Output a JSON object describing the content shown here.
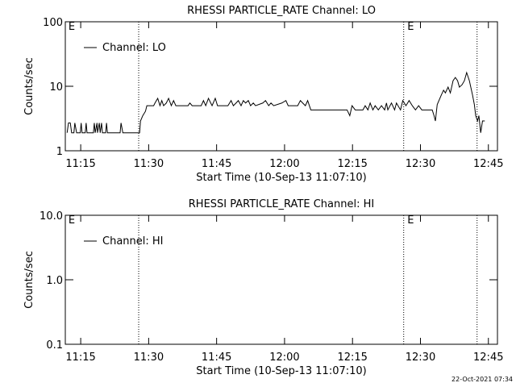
{
  "chart_data": [
    {
      "type": "line",
      "title": "RHESSI PARTICLE_RATE Channel: LO",
      "xlabel": "Start Time (10-Sep-13 11:07:10)",
      "ylabel": "Counts/sec",
      "yscale": "log",
      "xlim": [
        671.6,
        767
      ],
      "ylim": [
        1,
        100
      ],
      "xticks": [
        {
          "value": 675,
          "label": "11:15"
        },
        {
          "value": 690,
          "label": "11:30"
        },
        {
          "value": 705,
          "label": "11:45"
        },
        {
          "value": 720,
          "label": "12:00"
        },
        {
          "value": 735,
          "label": "12:15"
        },
        {
          "value": 750,
          "label": "12:30"
        },
        {
          "value": 765,
          "label": "12:45"
        }
      ],
      "yticks": [
        1,
        10,
        100
      ],
      "markers": [
        687.8,
        746.3,
        762.5
      ],
      "annotations": [
        {
          "text": "E",
          "x": 672.3
        },
        {
          "text": "E",
          "x": 747.1
        }
      ],
      "x": [
        672.0,
        672.3,
        672.7,
        673.0,
        673.5,
        673.7,
        674.1,
        674.9,
        675.1,
        675.3,
        676.0,
        676.2,
        676.4,
        677.8,
        678.0,
        678.2,
        678.6,
        678.7,
        679.1,
        679.3,
        679.6,
        679.8,
        680.5,
        680.7,
        680.9,
        683.7,
        683.9,
        684.3,
        688.0,
        688.2,
        688.7,
        689.3,
        689.6,
        691.1,
        691.4,
        692.0,
        692.5,
        692.9,
        693.3,
        693.9,
        694.4,
        695.0,
        695.5,
        696.0,
        698.7,
        699.1,
        699.6,
        701.6,
        702.1,
        702.6,
        703.2,
        703.7,
        704.0,
        704.7,
        705.2,
        707.5,
        708.2,
        708.7,
        709.3,
        709.8,
        710.4,
        710.9,
        711.4,
        712.0,
        712.5,
        713.1,
        713.6,
        715.2,
        715.8,
        716.5,
        717.0,
        717.6,
        719.4,
        720.3,
        720.8,
        722.9,
        723.5,
        724.0,
        724.6,
        725.1,
        725.8,
        733.8,
        734.4,
        734.9,
        735.6,
        737.3,
        737.8,
        738.4,
        738.9,
        739.5,
        740.0,
        740.7,
        741.4,
        742.1,
        742.5,
        742.8,
        743.6,
        744.3,
        744.7,
        745.6,
        746.1,
        746.8,
        747.5,
        748.2,
        748.9,
        749.6,
        750.3,
        752.6,
        753.0,
        753.3,
        753.7,
        754.6,
        755.1,
        755.5,
        756.1,
        756.6,
        757.2,
        757.7,
        758.2,
        758.6,
        759.2,
        759.7,
        760.2,
        760.8,
        761.5,
        761.9,
        762.2,
        762.6,
        762.9,
        763.3,
        763.7,
        764.2
      ],
      "series": [
        {
          "name": "Channel: LO",
          "color": "#000000",
          "values": [
            1.9,
            2.7,
            2.7,
            1.9,
            1.9,
            2.7,
            1.9,
            1.9,
            2.7,
            1.9,
            1.9,
            2.7,
            1.9,
            1.9,
            2.7,
            1.9,
            2.7,
            1.9,
            2.7,
            1.9,
            2.7,
            1.9,
            1.9,
            2.7,
            1.9,
            1.9,
            2.7,
            1.9,
            1.9,
            2.9,
            3.5,
            4.1,
            5.0,
            5.0,
            5.5,
            6.5,
            5.0,
            6.0,
            5.0,
            5.5,
            6.5,
            5.0,
            6.0,
            5.0,
            5.0,
            5.5,
            5.0,
            5.0,
            6.0,
            5.0,
            6.5,
            5.5,
            5.0,
            6.5,
            5.0,
            5.0,
            6.0,
            5.0,
            5.5,
            6.0,
            5.0,
            6.0,
            5.5,
            6.0,
            5.0,
            5.5,
            5.0,
            5.5,
            6.0,
            5.0,
            5.5,
            5.0,
            5.5,
            6.0,
            5.0,
            5.0,
            6.0,
            5.5,
            5.0,
            6.0,
            4.3,
            4.3,
            3.5,
            5.0,
            4.3,
            4.3,
            5.0,
            4.3,
            5.5,
            4.3,
            5.0,
            4.3,
            5.0,
            4.3,
            5.5,
            4.3,
            5.5,
            4.3,
            5.5,
            4.3,
            6.0,
            5.0,
            6.0,
            5.0,
            4.3,
            5.0,
            4.3,
            4.3,
            3.5,
            2.9,
            5.2,
            7.3,
            8.7,
            7.9,
            9.7,
            7.9,
            12.2,
            13.7,
            12.2,
            9.7,
            10.6,
            12.2,
            16.3,
            12.2,
            7.3,
            5.2,
            3.5,
            2.9,
            3.5,
            1.9,
            2.9,
            2.9
          ]
        }
      ]
    },
    {
      "type": "line",
      "title": "RHESSI PARTICLE_RATE Channel: HI",
      "xlabel": "Start Time (10-Sep-13 11:07:10)",
      "ylabel": "Counts/sec",
      "yscale": "log",
      "xlim": [
        671.6,
        767
      ],
      "ylim": [
        0.1,
        10
      ],
      "xticks": [
        {
          "value": 675,
          "label": "11:15"
        },
        {
          "value": 690,
          "label": "11:30"
        },
        {
          "value": 705,
          "label": "11:45"
        },
        {
          "value": 720,
          "label": "12:00"
        },
        {
          "value": 735,
          "label": "12:15"
        },
        {
          "value": 750,
          "label": "12:30"
        },
        {
          "value": 765,
          "label": "12:45"
        }
      ],
      "yticks": [
        0.1,
        {
          "value": 1,
          "label": "1.0"
        },
        {
          "value": 10,
          "label": "10.0"
        }
      ],
      "markers": [
        687.8,
        746.3,
        762.5
      ],
      "annotations": [
        {
          "text": "E",
          "x": 672.3
        },
        {
          "text": "E",
          "x": 747.1
        }
      ],
      "x": [],
      "series": [
        {
          "name": "Channel: HI",
          "color": "#000000",
          "values": []
        }
      ]
    }
  ],
  "footer": "22-Oct-2021 07:34"
}
